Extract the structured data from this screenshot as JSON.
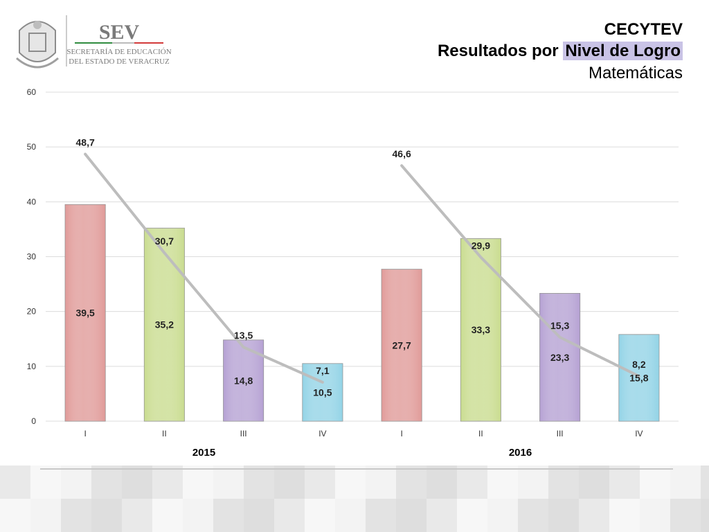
{
  "header": {
    "org": "CECYTEV",
    "title_prefix": "Resultados por ",
    "title_highlight": "Nivel de Logro",
    "subject": "Matemáticas"
  },
  "logo": {
    "name": "SEV",
    "line1": "SECRETARÍA DE EDUCACIÓN",
    "line2": "DEL ESTADO DE VERACRUZ"
  },
  "chart_data": {
    "type": "bar",
    "ylim": [
      0,
      60
    ],
    "yticks": [
      0,
      10,
      20,
      30,
      40,
      50,
      60
    ],
    "groups": [
      "2015",
      "2016"
    ],
    "categories": [
      "I",
      "II",
      "III",
      "IV",
      "I",
      "II",
      "III",
      "IV"
    ],
    "series": [
      {
        "type": "bar",
        "values": [
          39.5,
          35.2,
          14.8,
          10.5,
          27.7,
          33.3,
          23.3,
          15.8
        ],
        "labels": [
          "39,5",
          "35,2",
          "14,8",
          "10,5",
          "27,7",
          "33,3",
          "23,3",
          "15,8"
        ]
      },
      {
        "type": "line",
        "values": [
          48.7,
          30.7,
          13.5,
          7.1,
          46.6,
          29.9,
          15.3,
          8.2
        ],
        "labels": [
          "48,7",
          "30,7",
          "13,5",
          "7,1",
          "46,6",
          "29,9",
          "15,3",
          "8,2"
        ]
      }
    ],
    "colors": [
      "#e09a98",
      "#c9dc8f",
      "#b5a1d3",
      "#92d3e6"
    ],
    "line_color": "#bdbdbd",
    "grid": true
  }
}
